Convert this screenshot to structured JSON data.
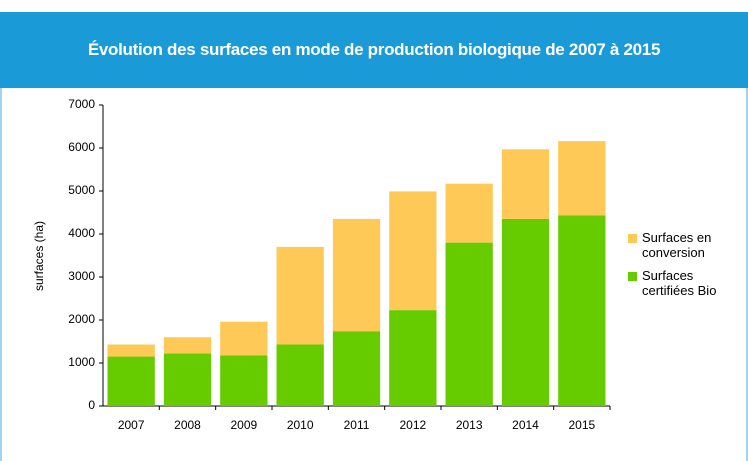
{
  "chart_data": {
    "type": "stacked_bar",
    "title": "Évolution des surfaces en mode de production biologique de 2007 à 2015",
    "y_label": "surfaces (ha)",
    "categories": [
      "2007",
      "2008",
      "2009",
      "2010",
      "2011",
      "2012",
      "2013",
      "2014",
      "2015"
    ],
    "series": [
      {
        "name": "Surfaces certifiées Bio",
        "color": "#66cc00",
        "values": [
          1150,
          1220,
          1180,
          1430,
          1740,
          2230,
          3800,
          4350,
          4430
        ]
      },
      {
        "name": "Surfaces en conversion",
        "color": "#ffc957",
        "values": [
          280,
          380,
          780,
          2270,
          2610,
          2760,
          1370,
          1620,
          1730
        ]
      }
    ],
    "ylim": [
      0,
      7000
    ],
    "yticks": [
      0,
      1000,
      2000,
      3000,
      4000,
      5000,
      6000,
      7000
    ],
    "legend": "right"
  }
}
